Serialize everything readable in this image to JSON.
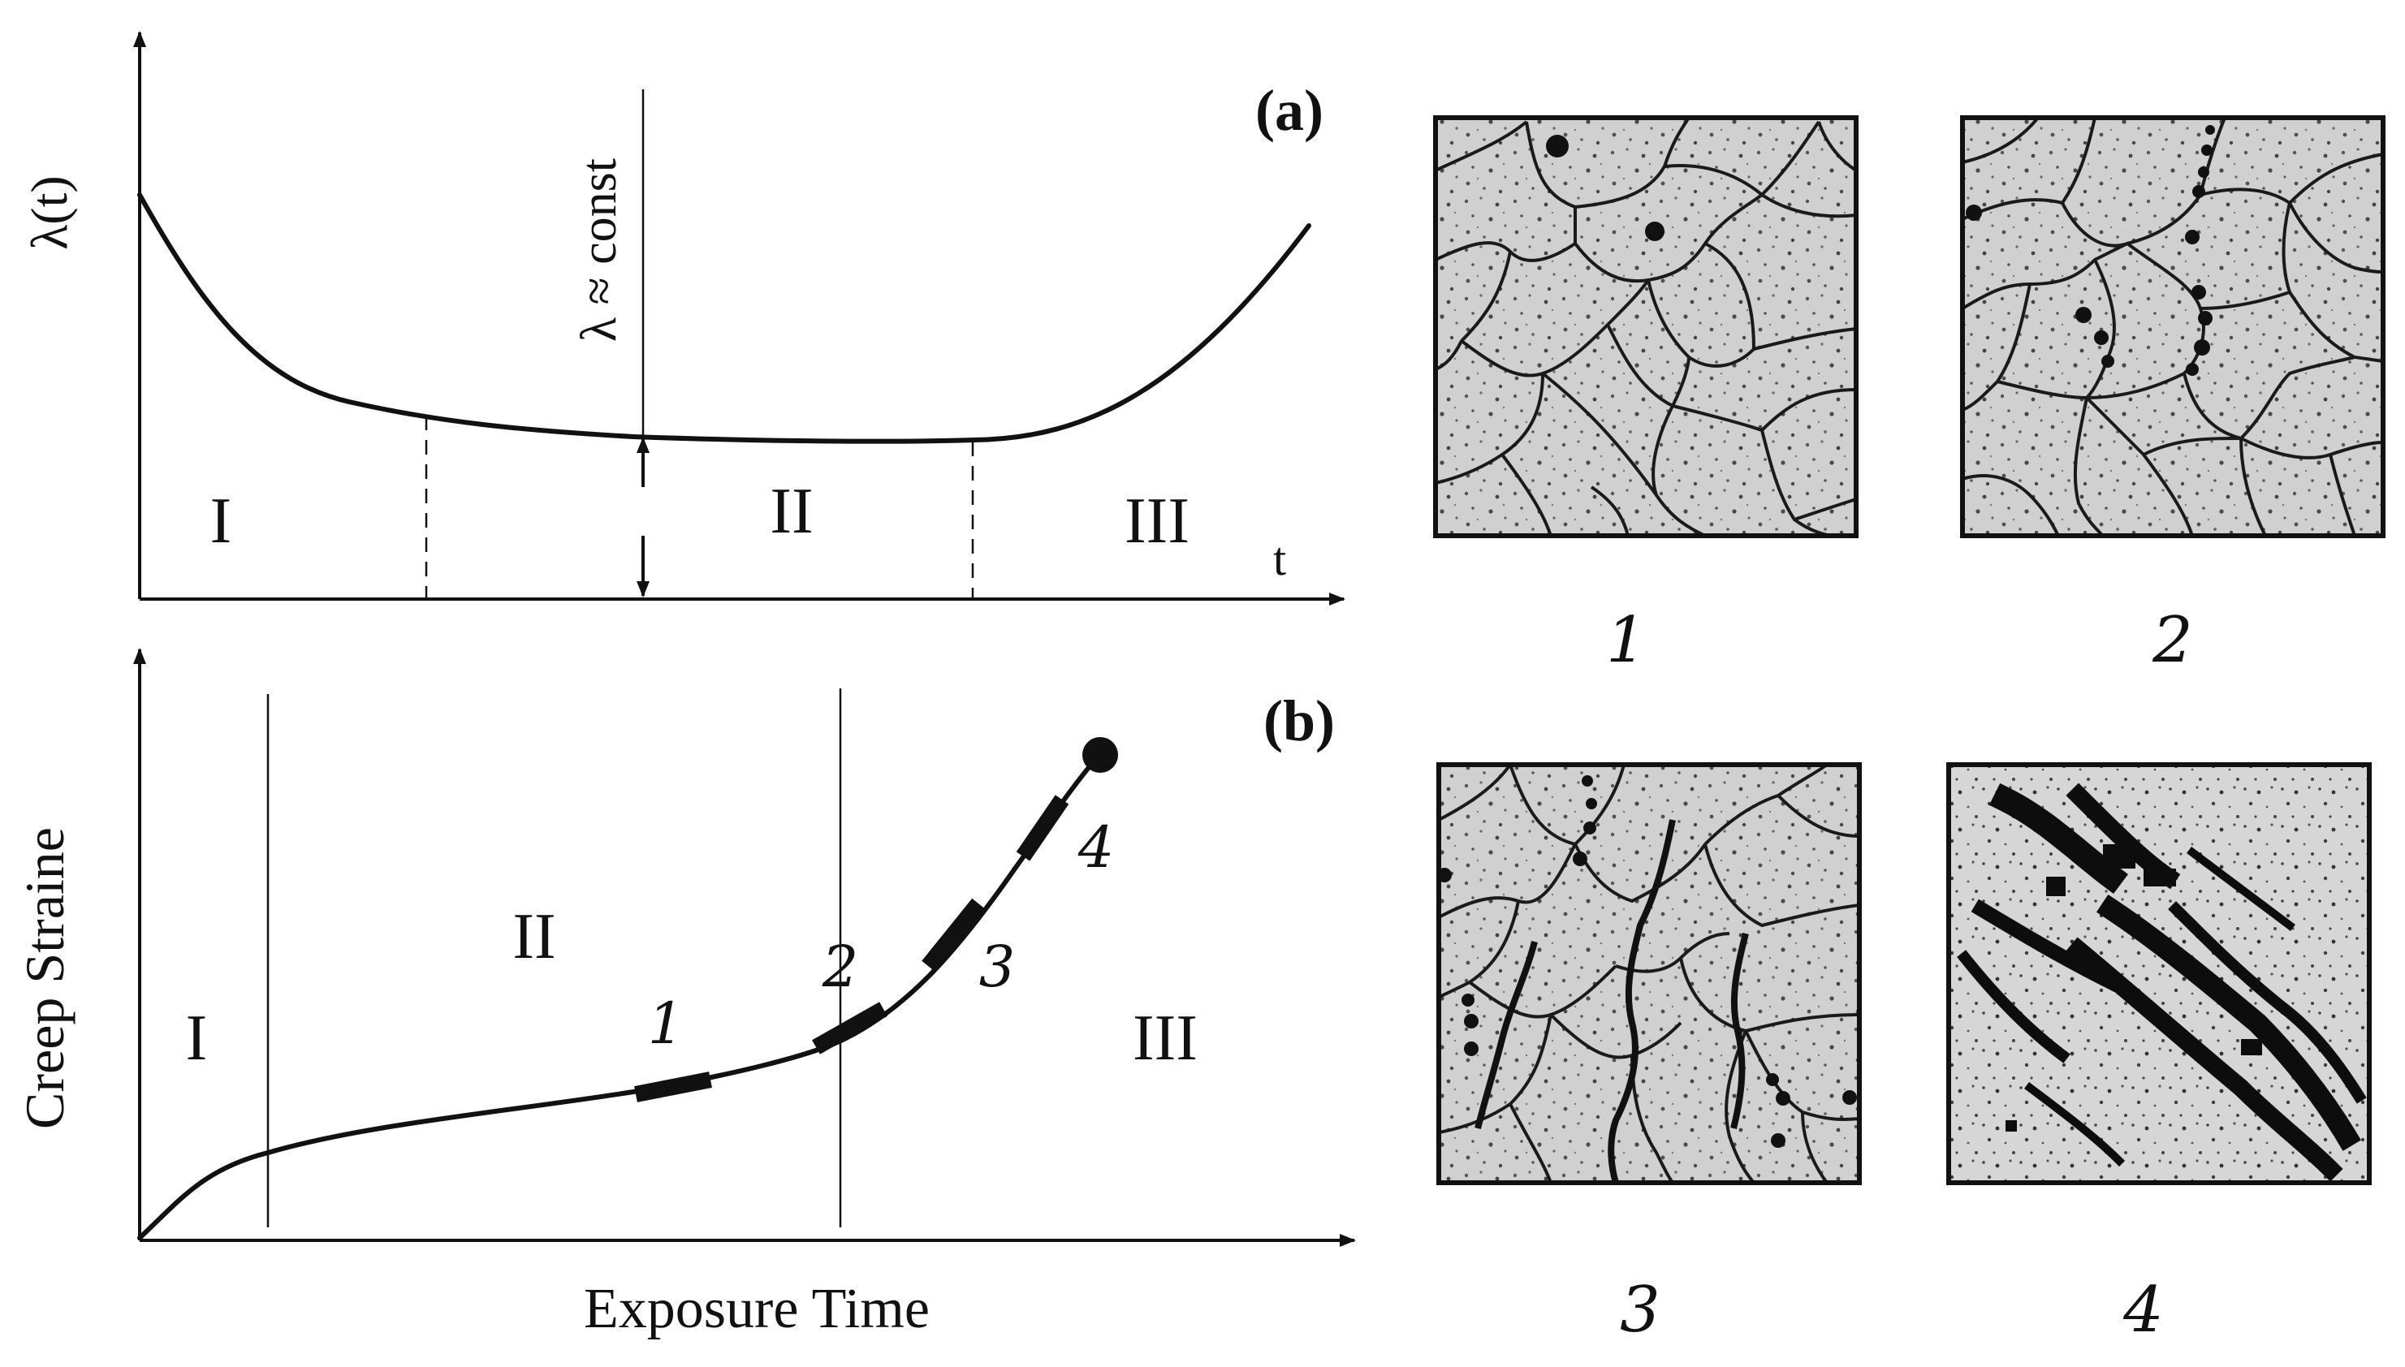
{
  "panel_a": {
    "tag": "(a)",
    "ylabel": "λ(t)",
    "xlabel": "t",
    "annotation": "λ ≈ const",
    "stages": [
      "I",
      "II",
      "III"
    ]
  },
  "panel_b": {
    "tag": "(b)",
    "ylabel": "Creep Straine",
    "xlabel": "Exposure Time",
    "stages": [
      "I",
      "II",
      "III"
    ],
    "point_labels": [
      "1",
      "2",
      "3",
      "4"
    ]
  },
  "micrographs": {
    "labels": [
      "1",
      "2",
      "3",
      "4"
    ]
  }
}
